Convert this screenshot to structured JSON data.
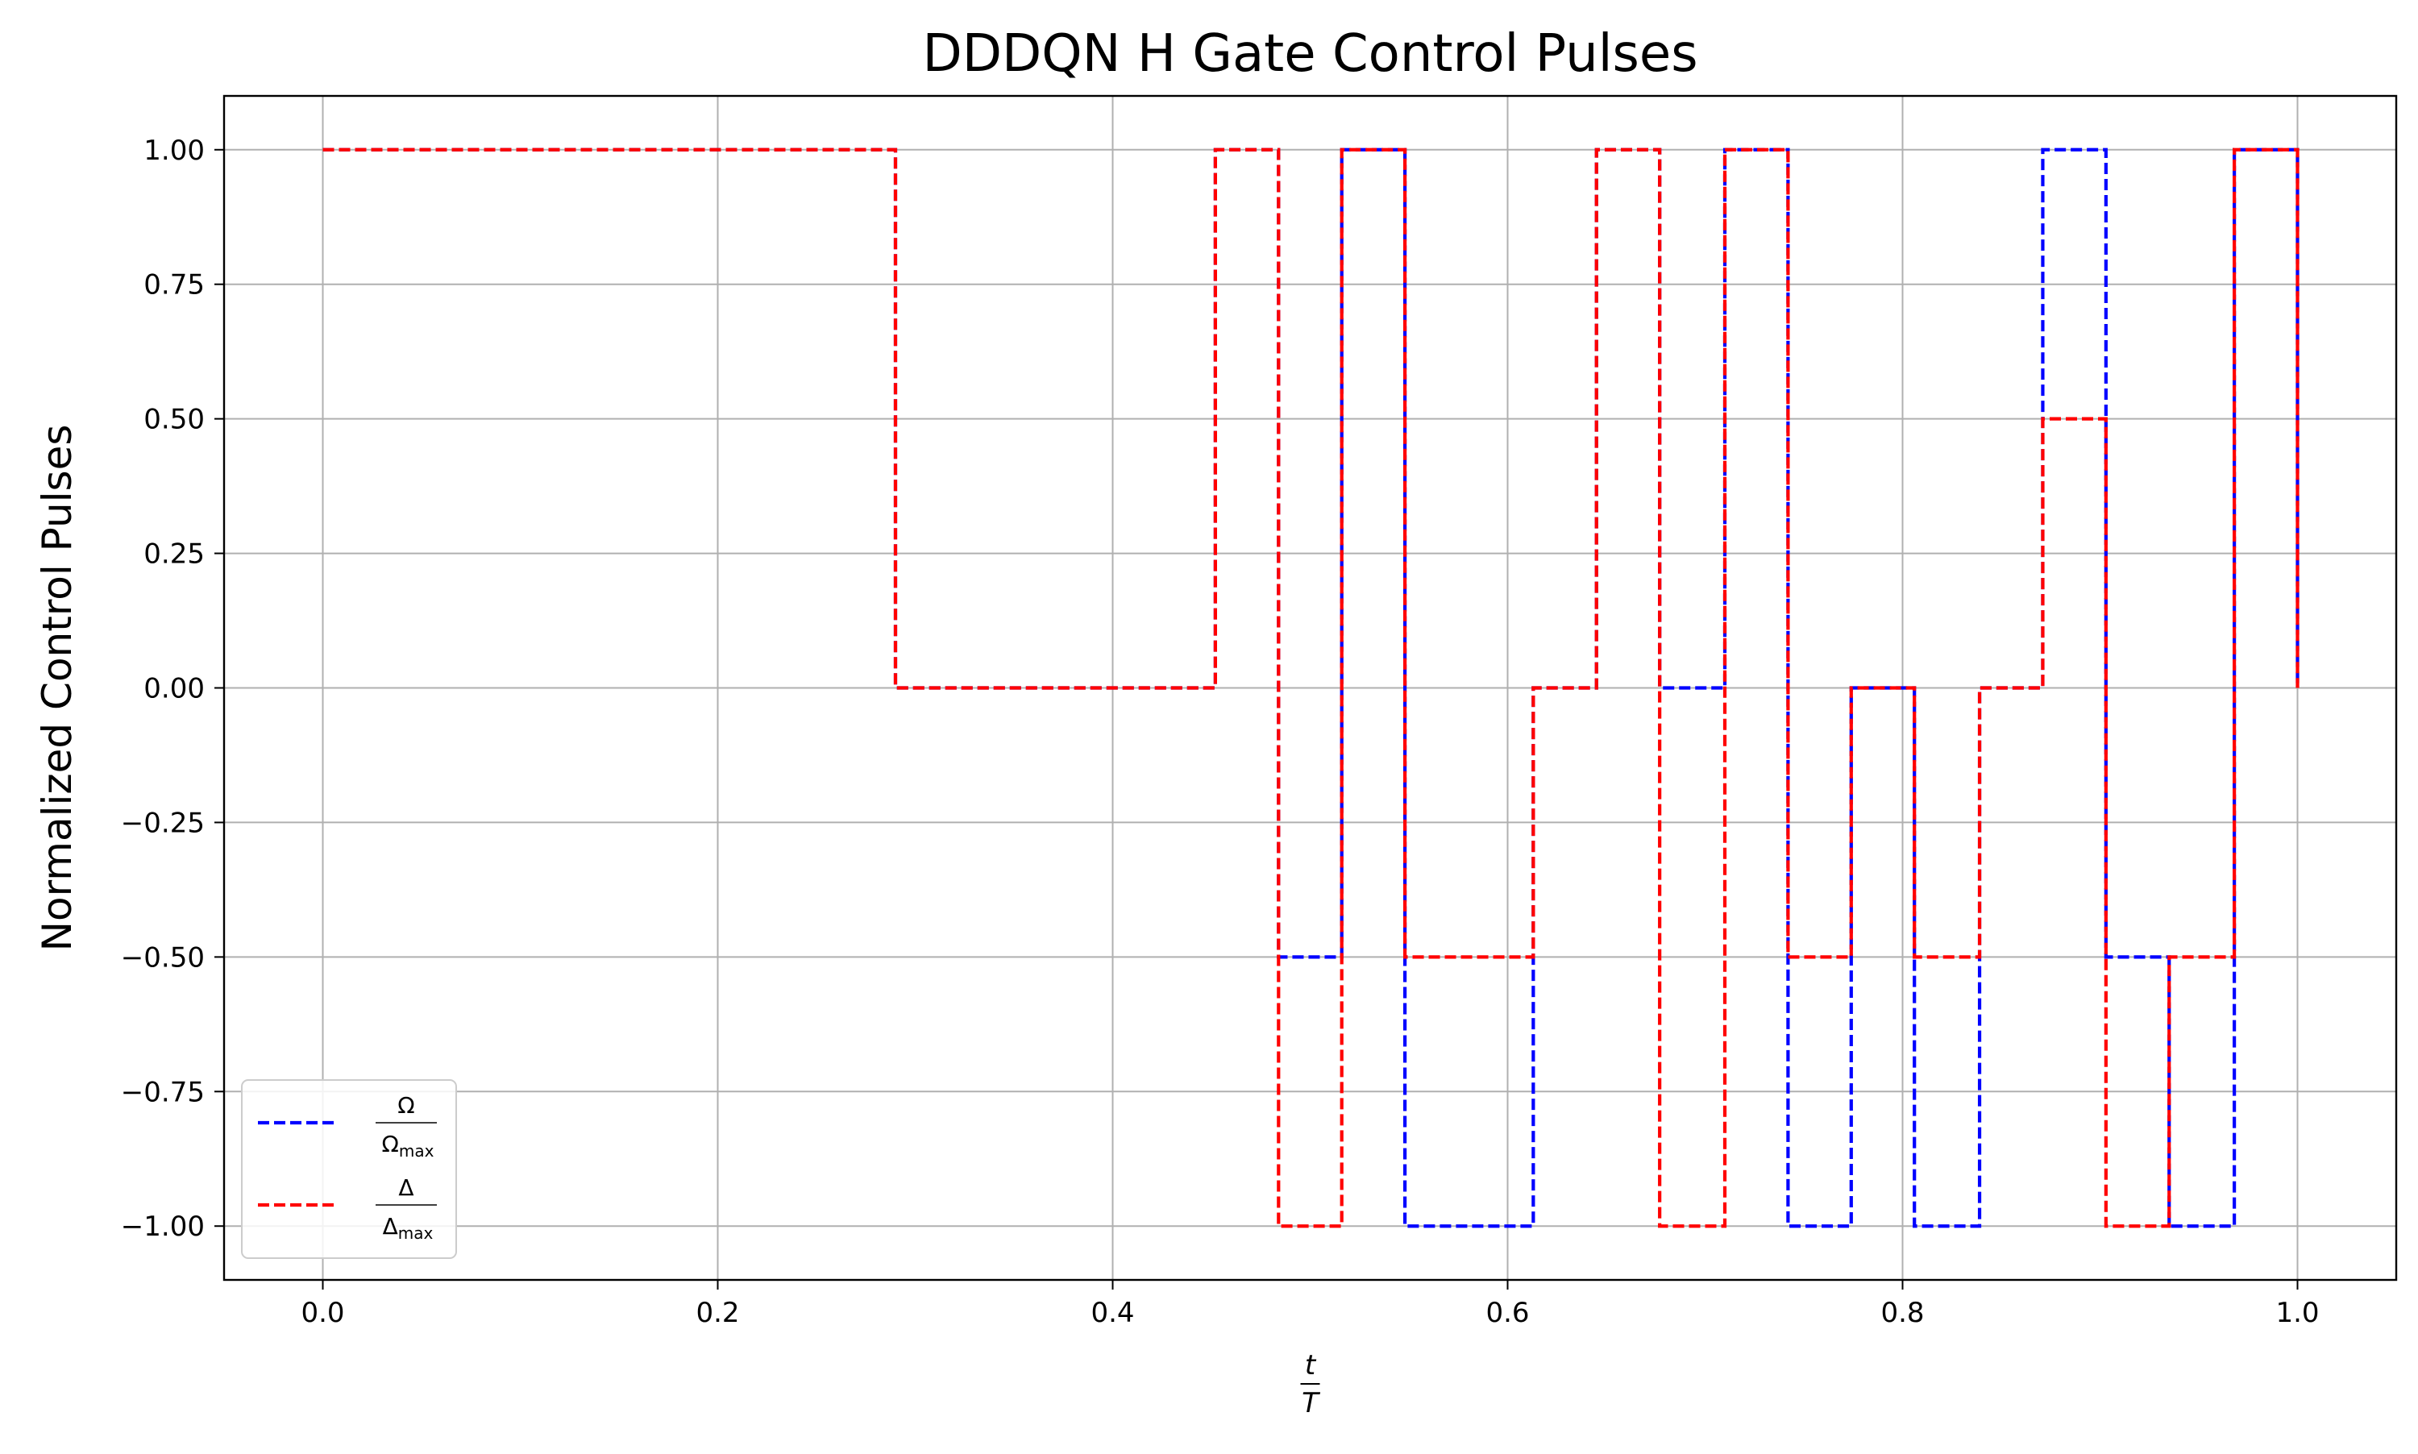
{
  "chart_data": {
    "type": "line",
    "title": "DDDQN H Gate Control Pulses",
    "ylabel": "Normalized Control Pulses",
    "xlabel": {
      "numerator": "t",
      "denominator": "T"
    },
    "xlim": [
      -0.05,
      1.05
    ],
    "ylim": [
      -1.1,
      1.1
    ],
    "x_ticks": [
      0.0,
      0.2,
      0.4,
      0.6,
      0.8,
      1.0
    ],
    "x_tick_labels": [
      "0.0",
      "0.2",
      "0.4",
      "0.6",
      "0.8",
      "1.0"
    ],
    "y_ticks": [
      1.0,
      0.75,
      0.5,
      0.25,
      0.0,
      -0.25,
      -0.5,
      -0.75,
      -1.0
    ],
    "y_tick_labels": [
      "1.00",
      "0.75",
      "0.50",
      "0.25",
      "0.00",
      "−0.25",
      "−0.50",
      "−0.75",
      "−1.00"
    ],
    "grid": true,
    "legend_position": "lower-left",
    "step_edges": [
      0.0,
      0.032,
      0.065,
      0.097,
      0.129,
      0.161,
      0.194,
      0.226,
      0.258,
      0.29,
      0.323,
      0.355,
      0.387,
      0.419,
      0.452,
      0.484,
      0.516,
      0.548,
      0.581,
      0.613,
      0.645,
      0.677,
      0.71,
      0.742,
      0.774,
      0.806,
      0.839,
      0.871,
      0.903,
      0.935,
      0.968,
      1.0
    ],
    "series": [
      {
        "legend": {
          "numerator": "Ω",
          "denominator": "Ω",
          "subscript": "max"
        },
        "color": "#0000ff",
        "values": [
          1,
          1,
          1,
          1,
          1,
          1,
          1,
          1,
          1,
          0,
          0,
          0,
          0,
          0,
          1,
          -0.5,
          1,
          -1,
          -1,
          0,
          1,
          0,
          1,
          -1,
          0,
          -1,
          0,
          1,
          -0.5,
          -1,
          1
        ]
      },
      {
        "legend": {
          "numerator": "Δ",
          "denominator": "Δ",
          "subscript": "max"
        },
        "color": "#ff0000",
        "values": [
          1,
          1,
          1,
          1,
          1,
          1,
          1,
          1,
          1,
          0,
          0,
          0,
          0,
          0,
          1,
          -1,
          1,
          -0.5,
          -0.5,
          0,
          1,
          -1,
          1,
          -0.5,
          0,
          -0.5,
          0,
          0.5,
          -1,
          -0.5,
          1
        ]
      }
    ]
  }
}
